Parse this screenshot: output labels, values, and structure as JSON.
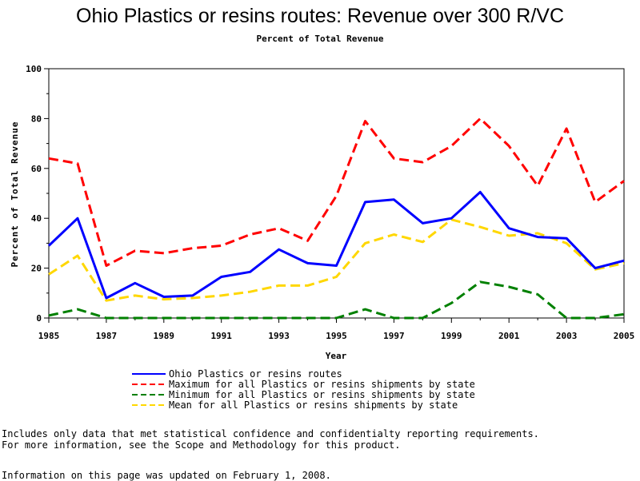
{
  "chart_data": {
    "type": "line",
    "title": "Ohio Plastics or resins routes: Revenue over 300 R/VC",
    "subtitle": "Percent of Total Revenue",
    "xlabel": "Year",
    "ylabel": "Percent of Total Revenue",
    "xlim": [
      1985,
      2005
    ],
    "ylim": [
      0,
      100
    ],
    "x_ticks": [
      "1985",
      "1987",
      "1989",
      "1991",
      "1993",
      "1995",
      "1997",
      "1999",
      "2001",
      "2003",
      "2005"
    ],
    "y_ticks": [
      "0",
      "20",
      "40",
      "60",
      "80",
      "100"
    ],
    "x": [
      1985,
      1986,
      1987,
      1988,
      1989,
      1990,
      1991,
      1992,
      1993,
      1994,
      1995,
      1996,
      1997,
      1998,
      1999,
      2000,
      2001,
      2002,
      2003,
      2004,
      2005
    ],
    "series": [
      {
        "name": "Ohio Plastics or resins routes",
        "color": "#0000ff",
        "style": "solid",
        "values": [
          29,
          40,
          8,
          14,
          8.5,
          9,
          16.5,
          18.5,
          27.5,
          22,
          21,
          46.5,
          47.5,
          38,
          40,
          50.5,
          36,
          32.5,
          32,
          20,
          23
        ]
      },
      {
        "name": "Maximum for all Plastics or resins shipments by state",
        "color": "#ff0000",
        "style": "dashed",
        "values": [
          64,
          62,
          21,
          27,
          26,
          28,
          29,
          33.5,
          36,
          31,
          49,
          79,
          64,
          62.5,
          69,
          80,
          69,
          53,
          76,
          46.5,
          55
        ]
      },
      {
        "name": "Minimum for all Plastics or resins shipments by state",
        "color": "#008000",
        "style": "dashed",
        "values": [
          1,
          3.5,
          0,
          0,
          0,
          0,
          0,
          0,
          0,
          0,
          0,
          3.5,
          0,
          0,
          6,
          14.5,
          12.5,
          9.5,
          0,
          0,
          1.5
        ]
      },
      {
        "name": "Mean for all Plastics or resins shipments by state",
        "color": "#ffd700",
        "style": "dashed",
        "values": [
          17.5,
          25,
          7,
          9,
          7.5,
          8,
          9,
          10.5,
          13,
          13,
          16.5,
          30,
          33.5,
          30.5,
          39.5,
          36.5,
          33,
          34,
          30,
          19.5,
          22
        ]
      }
    ],
    "grid": false,
    "legend_position": "bottom"
  },
  "notes": {
    "line1": "Includes only data that met statistical confidence and confidentialty reporting requirements.",
    "line2": "For more information, see the Scope and Methodology for this product.",
    "updated": "Information on this page was updated on February 1, 2008."
  }
}
